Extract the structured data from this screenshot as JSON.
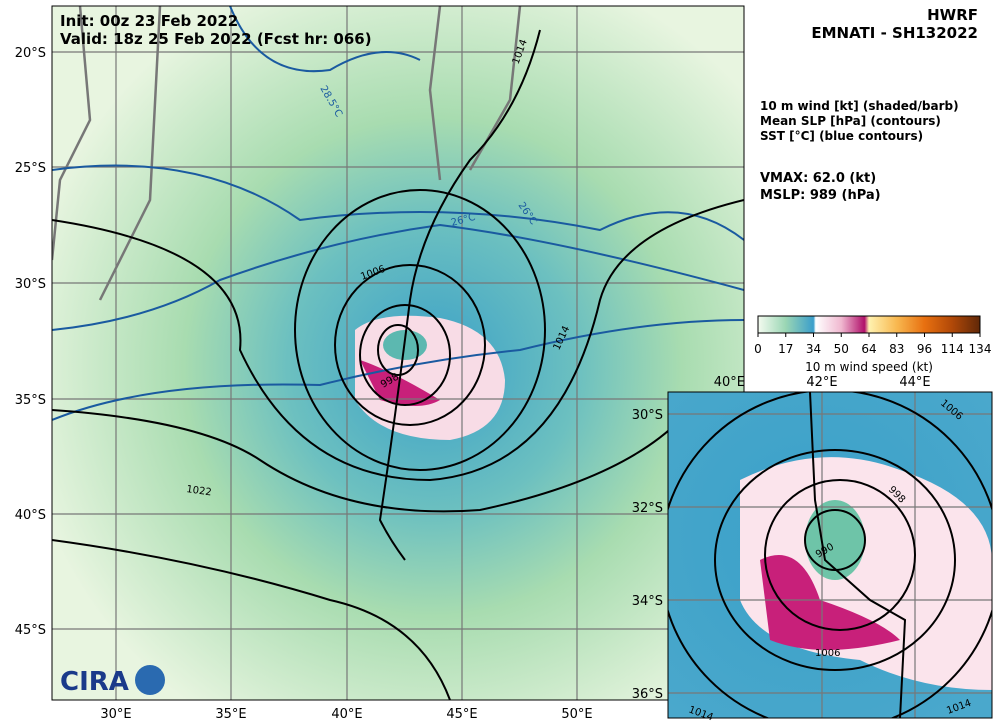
{
  "header": {
    "model": "HWRF",
    "storm": "EMNATI - SH132022",
    "init": "Init:   00z 23 Feb 2022",
    "valid": "Valid: 18z 25 Feb 2022 (Fcst hr: 066)"
  },
  "legend": {
    "lines": [
      "10 m wind [kt] (shaded/barb)",
      "Mean SLP [hPa] (contours)",
      "SST [°C] (blue contours)"
    ]
  },
  "stats": {
    "vmax": "VMAX:  62.0 (kt)",
    "mslp": "MSLP:  989 (hPa)"
  },
  "colorbar": {
    "ticks": [
      "0",
      "17",
      "34",
      "50",
      "64",
      "83",
      "96",
      "114",
      "134"
    ],
    "label": "10 m wind speed (kt)"
  },
  "main_map": {
    "x_labels": [
      "30°E",
      "35°E",
      "40°E",
      "45°E",
      "50°E"
    ],
    "y_labels": [
      "20°S",
      "25°S",
      "30°S",
      "35°S",
      "40°S",
      "45°S"
    ],
    "contour_labels": [
      "1014",
      "1006",
      "998",
      "1014",
      "1022"
    ],
    "sst_labels": [
      "28.5°C",
      "26°C",
      "26°C"
    ]
  },
  "inset": {
    "x_labels": [
      "42°E",
      "44°E"
    ],
    "y_labels": [
      "30°S",
      "32°S",
      "34°S",
      "36°S"
    ],
    "corner_label": "40°E",
    "contour_labels": [
      "1006",
      "998",
      "990",
      "1006",
      "1014",
      "1014"
    ]
  }
}
